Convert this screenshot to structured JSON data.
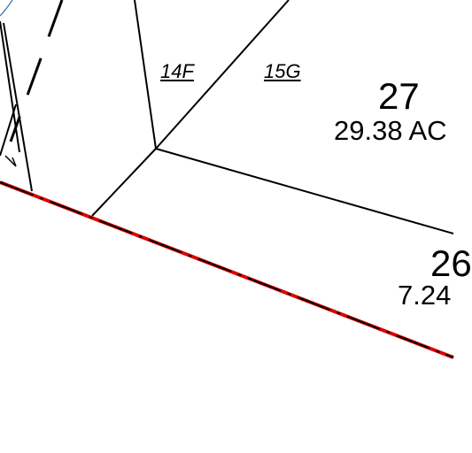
{
  "map": {
    "colors": {
      "background": "#ffffff",
      "parcel_line": "#000000",
      "boundary_red": "#e00000",
      "boundary_dash": "#000000",
      "water_line": "#2a6fb0"
    },
    "sub_lots": [
      {
        "id": "14f",
        "label": "14F"
      },
      {
        "id": "15g",
        "label": "15G"
      }
    ],
    "parcels": [
      {
        "id": "27",
        "number": "27",
        "area": "29.38 AC"
      },
      {
        "id": "26",
        "number": "26",
        "area": "7.24"
      }
    ]
  }
}
